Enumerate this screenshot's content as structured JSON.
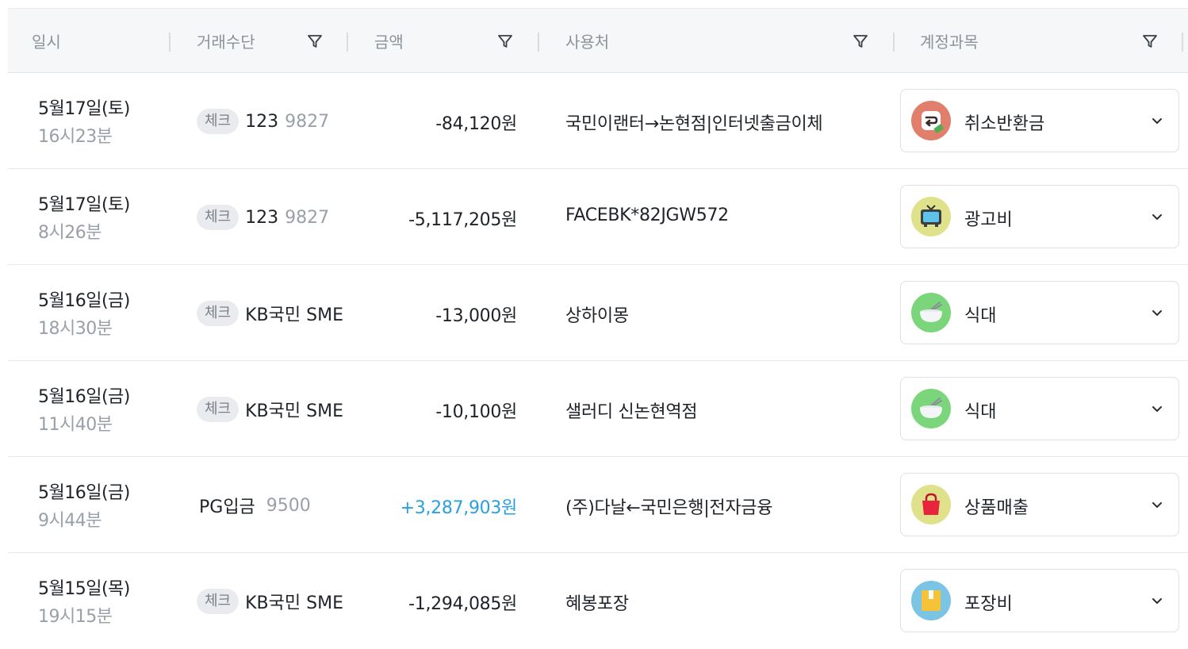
{
  "header": {
    "col_datetime": "일시",
    "col_method": "거래수단",
    "col_amount": "금액",
    "col_merchant": "사용처",
    "col_category": "계정과목"
  },
  "rows": [
    {
      "date": "5월17일(토)",
      "time": "16시23분",
      "badge": "체크",
      "account": "123",
      "account_num": "9827",
      "amount": "-84,120원",
      "amount_positive": false,
      "merchant": "국민이랜터→논현점|인터넷출금이체",
      "category": "취소반환금",
      "category_icon": "refund-icon",
      "icon_color": "#e0806c"
    },
    {
      "date": "5월17일(토)",
      "time": "8시26분",
      "badge": "체크",
      "account": "123",
      "account_num": "9827",
      "amount": "-5,117,205원",
      "amount_positive": false,
      "merchant": "FACEBK*82JGW572",
      "category": "광고비",
      "category_icon": "tv-icon",
      "icon_color": "#dfe28a"
    },
    {
      "date": "5월16일(금)",
      "time": "18시30분",
      "badge": "체크",
      "account": "KB국민 SME",
      "account_num": "",
      "amount": "-13,000원",
      "amount_positive": false,
      "merchant": "상하이몽",
      "category": "식대",
      "category_icon": "bowl-icon",
      "icon_color": "#7bd67b"
    },
    {
      "date": "5월16일(금)",
      "time": "11시40분",
      "badge": "체크",
      "account": "KB국민 SME",
      "account_num": "",
      "amount": "-10,100원",
      "amount_positive": false,
      "merchant": "샐러디 신논현역점",
      "category": "식대",
      "category_icon": "bowl-icon",
      "icon_color": "#7bd67b"
    },
    {
      "date": "5월16일(금)",
      "time": "9시44분",
      "badge": "",
      "account": "PG입금",
      "account_num": "9500",
      "amount": "+3,287,903원",
      "amount_positive": true,
      "merchant": "(주)다날←국민은행|전자금융",
      "category": "상품매출",
      "category_icon": "shopping-bag-icon",
      "icon_color": "#dfe28a"
    },
    {
      "date": "5월15일(목)",
      "time": "19시15분",
      "badge": "체크",
      "account": "KB국민 SME",
      "account_num": "",
      "amount": "-1,294,085원",
      "amount_positive": false,
      "merchant": "혜봉포장",
      "category": "포장비",
      "category_icon": "box-icon",
      "icon_color": "#7cc4e4"
    }
  ]
}
